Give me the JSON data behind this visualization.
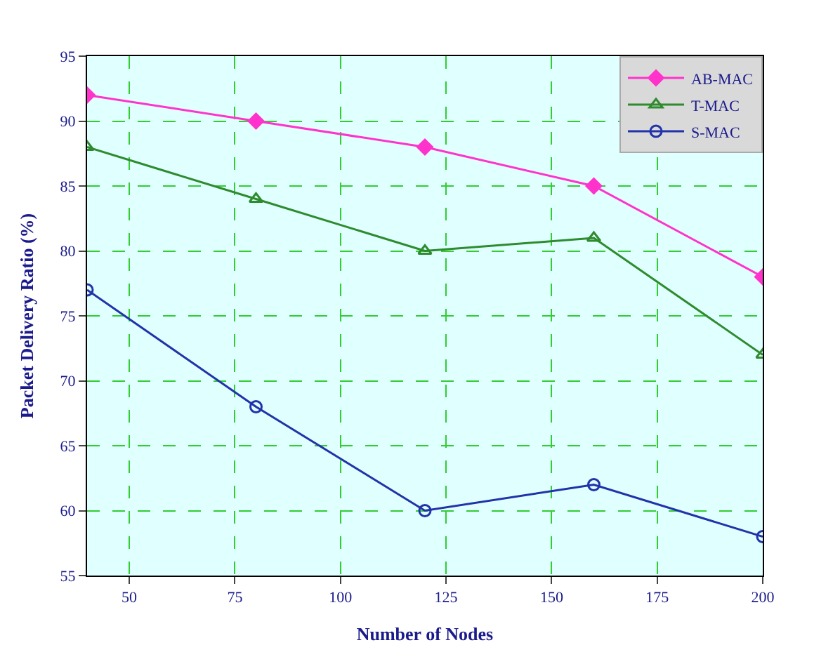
{
  "chart_data": {
    "type": "line",
    "xlabel": "Number of Nodes",
    "ylabel": "Packet Delivery Ratio (%)",
    "x": [
      40,
      80,
      120,
      160,
      200
    ],
    "series": [
      {
        "name": "AB-MAC",
        "color": "#ff33cc",
        "values": [
          92,
          90,
          88,
          85,
          78
        ],
        "marker": "diamond"
      },
      {
        "name": "T-MAC",
        "color": "#2e8b2e",
        "values": [
          88,
          84,
          80,
          81,
          72
        ],
        "marker": "triangle"
      },
      {
        "name": "S-MAC",
        "color": "#2233aa",
        "values": [
          77,
          68,
          60,
          62,
          58
        ],
        "marker": "circle"
      }
    ],
    "xlim": [
      40,
      200
    ],
    "xticks": [
      50,
      75,
      100,
      125,
      150,
      175,
      200
    ],
    "ylim": [
      55,
      95
    ],
    "yticks": [
      55,
      60,
      65,
      70,
      75,
      80,
      85,
      90,
      95
    ],
    "grid": true,
    "legend": "top right",
    "line_style": "solid"
  }
}
